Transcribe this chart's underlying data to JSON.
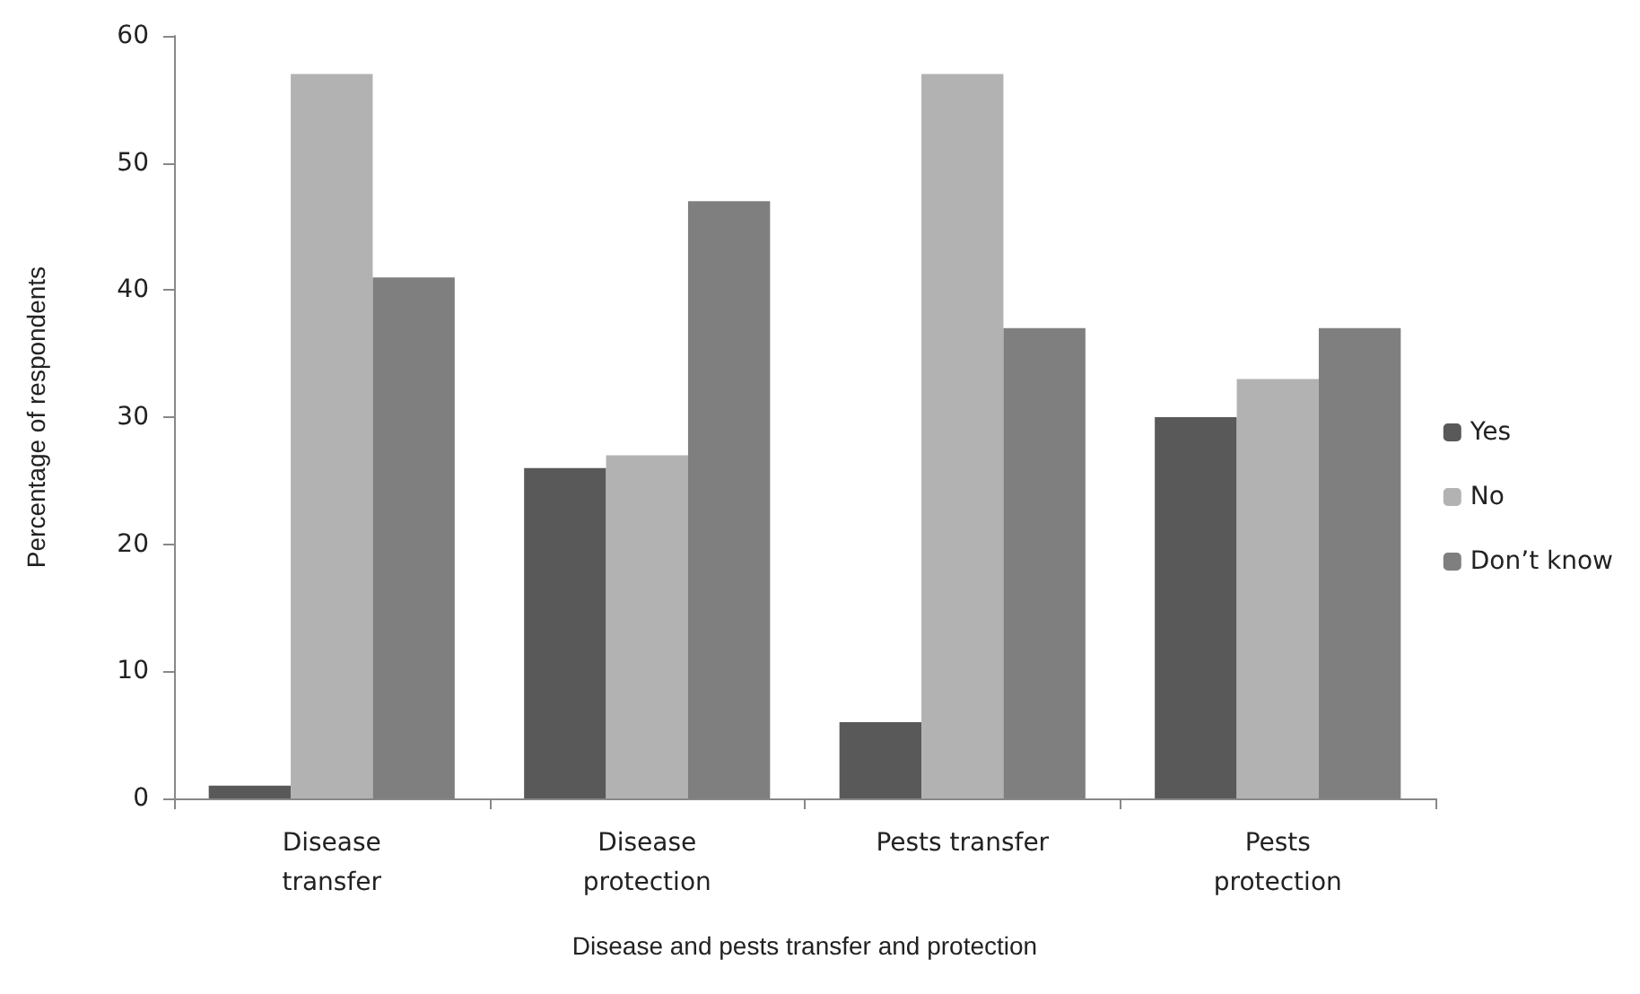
{
  "chart_data": {
    "type": "bar",
    "xlabel": "Disease and pests transfer and protection",
    "ylabel": "Percentage of respondents",
    "categories": [
      "Disease\ntransfer",
      "Disease\nprotection",
      "Pests transfer",
      "Pests\nprotection"
    ],
    "series": [
      {
        "name": "Yes",
        "color": "#595959",
        "values": [
          1,
          26,
          6,
          30
        ]
      },
      {
        "name": "No",
        "color": "#b2b2b2",
        "values": [
          57,
          27,
          57,
          33
        ]
      },
      {
        "name": "Don’t know",
        "color": "#7f7f7f",
        "values": [
          41,
          47,
          37,
          37
        ]
      }
    ],
    "ylim": [
      0,
      60
    ],
    "yticks": [
      0,
      10,
      20,
      30,
      40,
      50,
      60
    ],
    "grid": false,
    "legend": "right"
  }
}
